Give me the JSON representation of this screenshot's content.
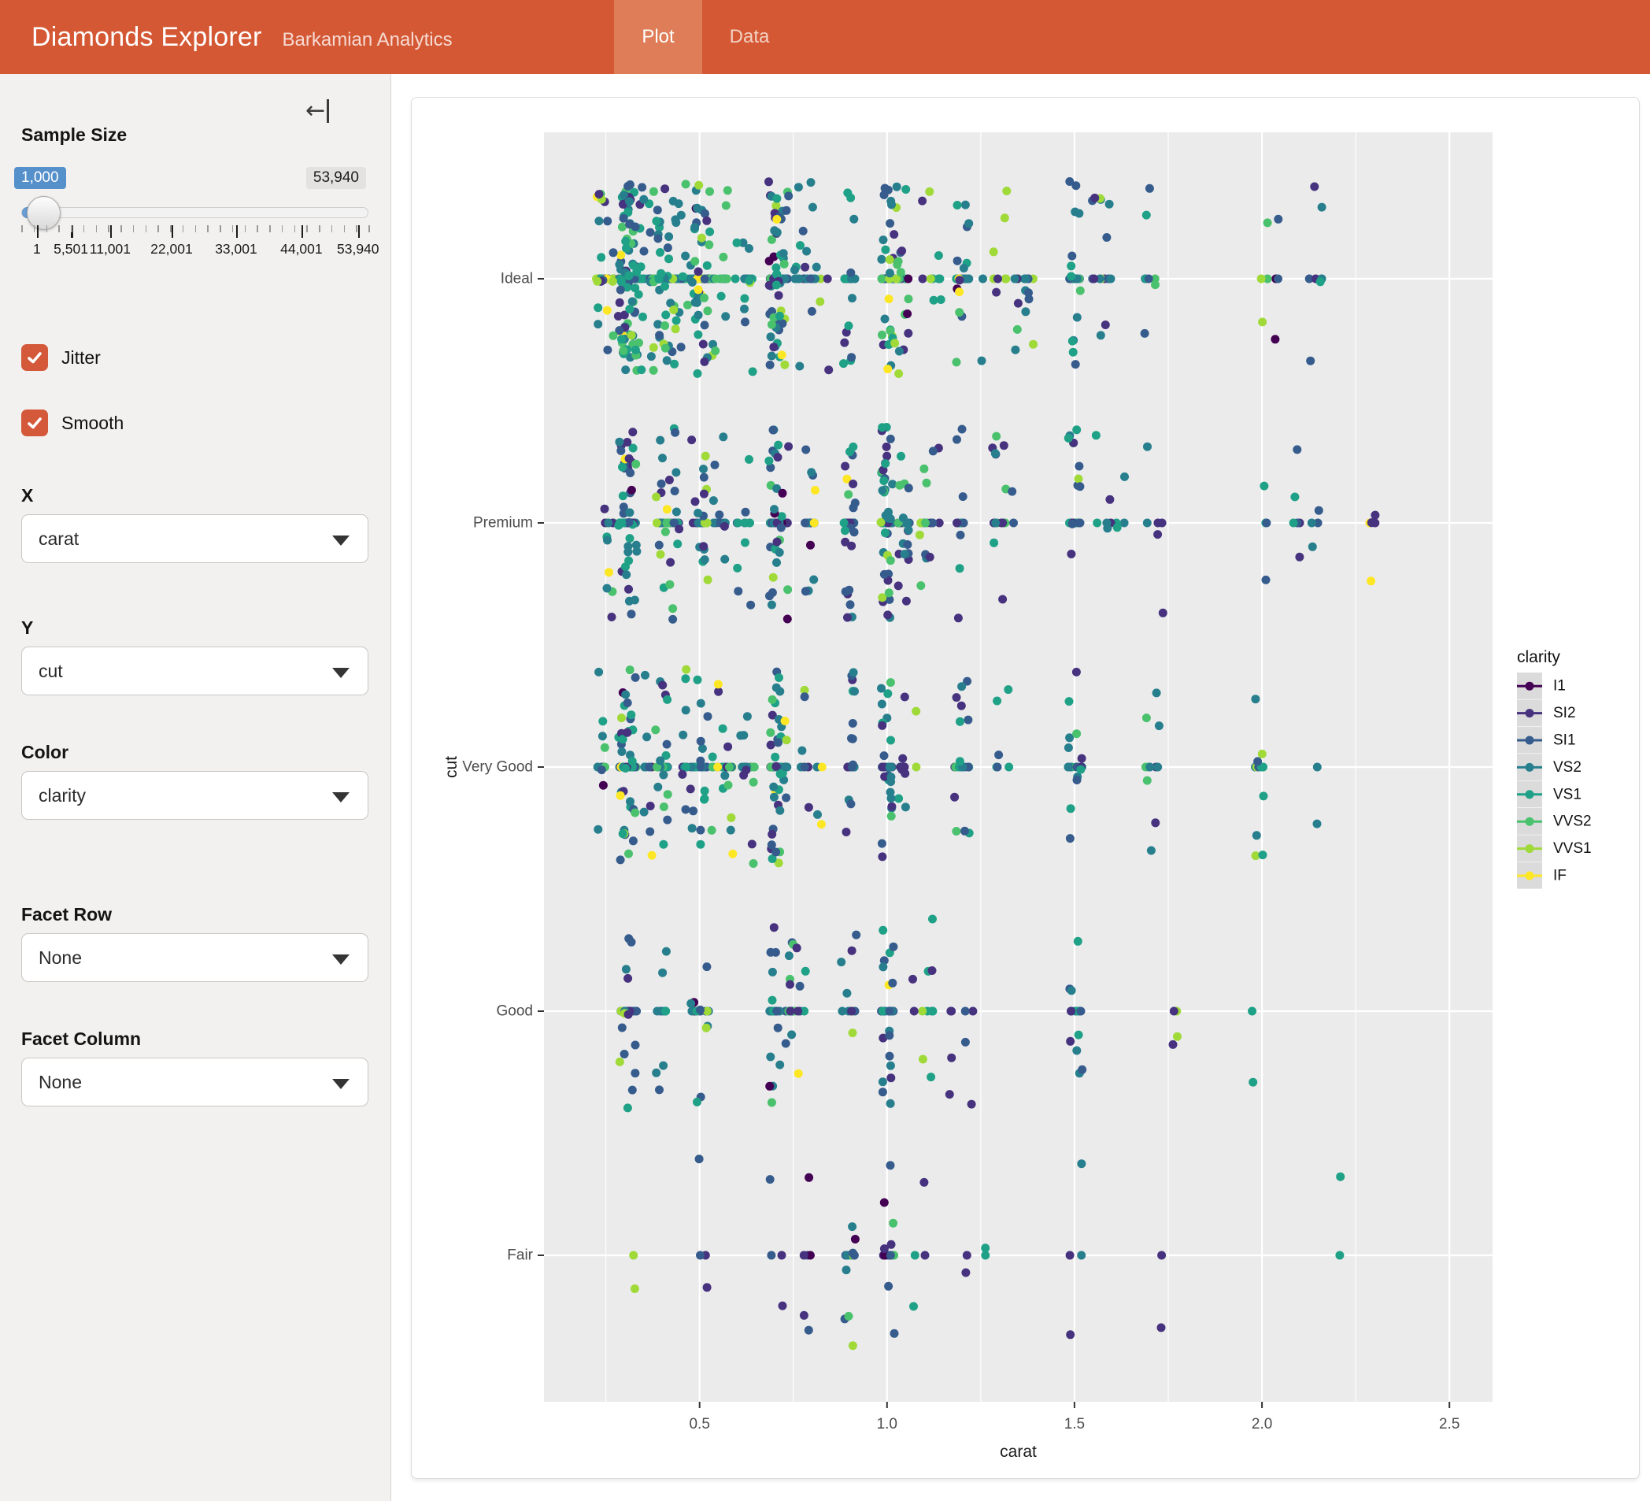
{
  "navbar": {
    "title": "Diamonds Explorer",
    "subtitle": "Barkamian Analytics",
    "tabs": [
      {
        "label": "Plot",
        "active": true
      },
      {
        "label": "Data",
        "active": false
      }
    ]
  },
  "icons": {
    "collapse": "arrow-to-left-bar",
    "checkbox": "checkmark",
    "select": "triangle-down-caret"
  },
  "colors": {
    "accent": "#D4583A",
    "navbar_bg": "#D45834",
    "navbar_active_tab_bg": "#DF7D58",
    "slider_value_bg": "#5590CB",
    "slider_max_bg": "#E4E2E0",
    "panel_bg": "#EBEBEB",
    "grid": "#FFFFFF",
    "legend_key_bg": "#DBDBDB"
  },
  "sidebar": {
    "sample_size": {
      "label": "Sample Size",
      "value": 1000,
      "value_label": "1,000",
      "min": 1,
      "max": 53940,
      "max_label": "53,940",
      "tick_labels": [
        "1",
        "5,501",
        "11,001",
        "22,001",
        "33,001",
        "44,001",
        "53,940"
      ]
    },
    "checkboxes": [
      {
        "label": "Jitter",
        "checked": true
      },
      {
        "label": "Smooth",
        "checked": true
      }
    ],
    "selects": [
      {
        "label": "X",
        "value": "carat"
      },
      {
        "label": "Y",
        "value": "cut"
      },
      {
        "label": "Color",
        "value": "clarity"
      },
      {
        "label": "Facet Row",
        "value": "None"
      },
      {
        "label": "Facet Column",
        "value": "None"
      }
    ]
  },
  "chart_data": {
    "type": "scatter",
    "title": "",
    "xlabel": "carat",
    "ylabel": "cut",
    "sample_size": 1000,
    "jitter": true,
    "smooth": true,
    "x_range": [
      0.085,
      2.615
    ],
    "x_ticks": [
      {
        "value": 0.5,
        "label": "0.5"
      },
      {
        "value": 1.0,
        "label": "1.0"
      },
      {
        "value": 1.5,
        "label": "1.5"
      },
      {
        "value": 2.0,
        "label": "2.0"
      },
      {
        "value": 2.5,
        "label": "2.5"
      }
    ],
    "x_minor": [
      0.25,
      0.75,
      1.25,
      1.75,
      2.25
    ],
    "y_categories": [
      "Fair",
      "Good",
      "Very Good",
      "Premium",
      "Ideal"
    ],
    "ylim_units": [
      0.4,
      5.6
    ],
    "grid": true,
    "panel_bg": "#EBEBEB",
    "grid_color": "#FFFFFF",
    "point_radius": 5.5,
    "legend": {
      "title": "clarity",
      "position": "right",
      "key_bg": "#DBDBDB",
      "entries": [
        {
          "label": "I1",
          "color": "#440154"
        },
        {
          "label": "SI2",
          "color": "#46327E"
        },
        {
          "label": "SI1",
          "color": "#365C8D"
        },
        {
          "label": "VS2",
          "color": "#277F8E"
        },
        {
          "label": "VS1",
          "color": "#1FA187"
        },
        {
          "label": "VVS2",
          "color": "#4AC16D"
        },
        {
          "label": "VVS1",
          "color": "#A0DA39"
        },
        {
          "label": "IF",
          "color": "#FDE725"
        }
      ]
    },
    "jitter_amount": {
      "x": 0.004,
      "y": 0.4
    },
    "seed": 7,
    "distribution": {
      "note": "approximate reconstruction of the 1000-diamond sample: counts per cut, carat clusters [center,weight,spread], clarity weights per cut in legend order",
      "cut_counts": [
        30,
        91,
        224,
        256,
        399
      ],
      "carat_clusters": {
        "Fair": [
          [
            0.35,
            1,
            0.03
          ],
          [
            0.5,
            2,
            0.03
          ],
          [
            0.7,
            5,
            0.02
          ],
          [
            0.8,
            2,
            0.03
          ],
          [
            0.9,
            4,
            0.02
          ],
          [
            1.0,
            4,
            0.02
          ],
          [
            1.1,
            1.5,
            0.03
          ],
          [
            1.25,
            1.5,
            0.04
          ],
          [
            1.5,
            1,
            0.02
          ],
          [
            1.75,
            0.5,
            0.05
          ],
          [
            2.0,
            1,
            0.03
          ],
          [
            2.2,
            0.7,
            0.03
          ],
          [
            2.5,
            0.4,
            0.01
          ]
        ],
        "Good": [
          [
            0.3,
            6,
            0.012
          ],
          [
            0.32,
            3,
            0.012
          ],
          [
            0.4,
            3,
            0.015
          ],
          [
            0.5,
            4,
            0.025
          ],
          [
            0.6,
            2,
            0.03
          ],
          [
            0.7,
            6,
            0.015
          ],
          [
            0.75,
            3,
            0.03
          ],
          [
            0.9,
            4,
            0.02
          ],
          [
            1.0,
            5,
            0.018
          ],
          [
            1.1,
            2,
            0.03
          ],
          [
            1.2,
            2,
            0.03
          ],
          [
            1.35,
            1,
            0.04
          ],
          [
            1.5,
            2,
            0.02
          ],
          [
            1.8,
            0.8,
            0.05
          ],
          [
            2.0,
            1,
            0.03
          ],
          [
            2.25,
            0.5,
            0.04
          ]
        ],
        "Very Good": [
          [
            0.24,
            1.5,
            0.012
          ],
          [
            0.3,
            9,
            0.014
          ],
          [
            0.32,
            5,
            0.012
          ],
          [
            0.36,
            3,
            0.02
          ],
          [
            0.4,
            6,
            0.015
          ],
          [
            0.46,
            2,
            0.02
          ],
          [
            0.5,
            5,
            0.02
          ],
          [
            0.56,
            3,
            0.03
          ],
          [
            0.63,
            3,
            0.03
          ],
          [
            0.7,
            7,
            0.012
          ],
          [
            0.72,
            4,
            0.015
          ],
          [
            0.8,
            3,
            0.03
          ],
          [
            0.9,
            5,
            0.015
          ],
          [
            1.0,
            7,
            0.015
          ],
          [
            1.06,
            3,
            0.03
          ],
          [
            1.2,
            4,
            0.02
          ],
          [
            1.32,
            2,
            0.03
          ],
          [
            1.5,
            3,
            0.02
          ],
          [
            1.7,
            1.5,
            0.03
          ],
          [
            2.0,
            1.5,
            0.02
          ],
          [
            2.15,
            0.6,
            0.04
          ],
          [
            2.4,
            0.4,
            0.04
          ]
        ],
        "Premium": [
          [
            0.26,
            2,
            0.012
          ],
          [
            0.3,
            8,
            0.014
          ],
          [
            0.32,
            5,
            0.012
          ],
          [
            0.4,
            5,
            0.015
          ],
          [
            0.43,
            3,
            0.02
          ],
          [
            0.5,
            5,
            0.02
          ],
          [
            0.56,
            3,
            0.03
          ],
          [
            0.63,
            2,
            0.03
          ],
          [
            0.7,
            7,
            0.012
          ],
          [
            0.72,
            4,
            0.015
          ],
          [
            0.8,
            2,
            0.03
          ],
          [
            0.9,
            5,
            0.015
          ],
          [
            1.0,
            8,
            0.014
          ],
          [
            1.04,
            5,
            0.02
          ],
          [
            1.12,
            2,
            0.03
          ],
          [
            1.2,
            5,
            0.02
          ],
          [
            1.31,
            2,
            0.03
          ],
          [
            1.5,
            4,
            0.015
          ],
          [
            1.6,
            2,
            0.04
          ],
          [
            1.72,
            2,
            0.03
          ],
          [
            2.0,
            3,
            0.017
          ],
          [
            2.12,
            1.2,
            0.04
          ],
          [
            2.32,
            0.6,
            0.05
          ],
          [
            2.46,
            0.4,
            0.02
          ]
        ],
        "Ideal": [
          [
            0.23,
            3,
            0.01
          ],
          [
            0.26,
            2,
            0.012
          ],
          [
            0.3,
            14,
            0.014
          ],
          [
            0.32,
            8,
            0.012
          ],
          [
            0.34,
            5,
            0.012
          ],
          [
            0.38,
            3,
            0.02
          ],
          [
            0.4,
            7,
            0.014
          ],
          [
            0.43,
            4,
            0.02
          ],
          [
            0.47,
            2,
            0.02
          ],
          [
            0.5,
            7,
            0.02
          ],
          [
            0.53,
            4,
            0.02
          ],
          [
            0.57,
            3,
            0.02
          ],
          [
            0.62,
            2,
            0.03
          ],
          [
            0.7,
            9,
            0.012
          ],
          [
            0.72,
            5,
            0.015
          ],
          [
            0.77,
            2,
            0.02
          ],
          [
            0.82,
            2,
            0.03
          ],
          [
            0.9,
            4,
            0.015
          ],
          [
            1.0,
            8,
            0.015
          ],
          [
            1.04,
            4,
            0.02
          ],
          [
            1.12,
            2,
            0.03
          ],
          [
            1.2,
            4,
            0.02
          ],
          [
            1.27,
            2,
            0.03
          ],
          [
            1.35,
            2,
            0.04
          ],
          [
            1.5,
            4,
            0.015
          ],
          [
            1.57,
            2,
            0.03
          ],
          [
            1.7,
            2,
            0.02
          ],
          [
            2.02,
            2.5,
            0.025
          ],
          [
            2.12,
            1,
            0.05
          ],
          [
            2.27,
            0.6,
            0.01
          ]
        ]
      },
      "carat_max": {
        "Fair": 2.5,
        "Good": 2.32,
        "Very Good": 2.45,
        "Premium": 2.49,
        "Ideal": 2.29
      },
      "clarity_weights": {
        "Fair": [
          8,
          30,
          30,
          16,
          10,
          3,
          2,
          1
        ],
        "Good": [
          3,
          22,
          26,
          22,
          14,
          8,
          4,
          1
        ],
        "Very Good": [
          1.5,
          18,
          24,
          22,
          15,
          10,
          6,
          2.5
        ],
        "Premium": [
          2,
          18,
          24,
          24,
          15,
          8,
          5,
          2
        ],
        "Ideal": [
          1,
          12,
          20,
          24,
          18,
          12,
          9,
          4
        ]
      }
    }
  }
}
